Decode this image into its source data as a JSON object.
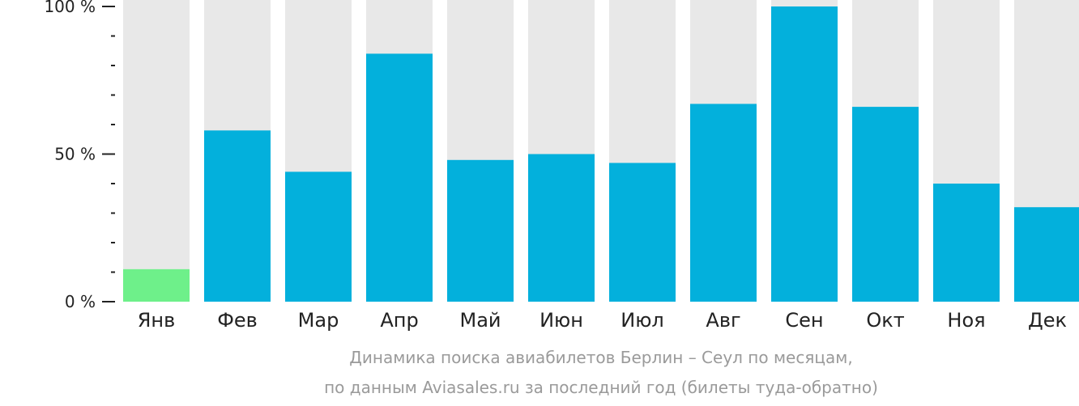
{
  "chart_data": {
    "type": "bar",
    "categories": [
      "Янв",
      "Фев",
      "Мар",
      "Апр",
      "Май",
      "Июн",
      "Июл",
      "Авг",
      "Сен",
      "Окт",
      "Ноя",
      "Дек"
    ],
    "values": [
      11,
      58,
      44,
      84,
      48,
      50,
      47,
      67,
      100,
      66,
      40,
      32
    ],
    "ylim": [
      0,
      100
    ],
    "yticks": [
      {
        "value": 100,
        "label": "100 %"
      },
      {
        "value": 50,
        "label": "50 %"
      },
      {
        "value": 0,
        "label": "0 %"
      }
    ],
    "minor_ticks": [
      10,
      20,
      30,
      40,
      60,
      70,
      80,
      90
    ],
    "highlight_index": 0,
    "colors": {
      "bar": "#03b0dc",
      "highlight": "#6ef08a",
      "track": "#e8e8e8",
      "axis": "#222222"
    }
  },
  "caption": {
    "line1": "Динамика поиска авиабилетов Берлин – Сеул по месяцам,",
    "line2": "по данным Aviasales.ru за последний год (билеты туда-обратно)"
  }
}
